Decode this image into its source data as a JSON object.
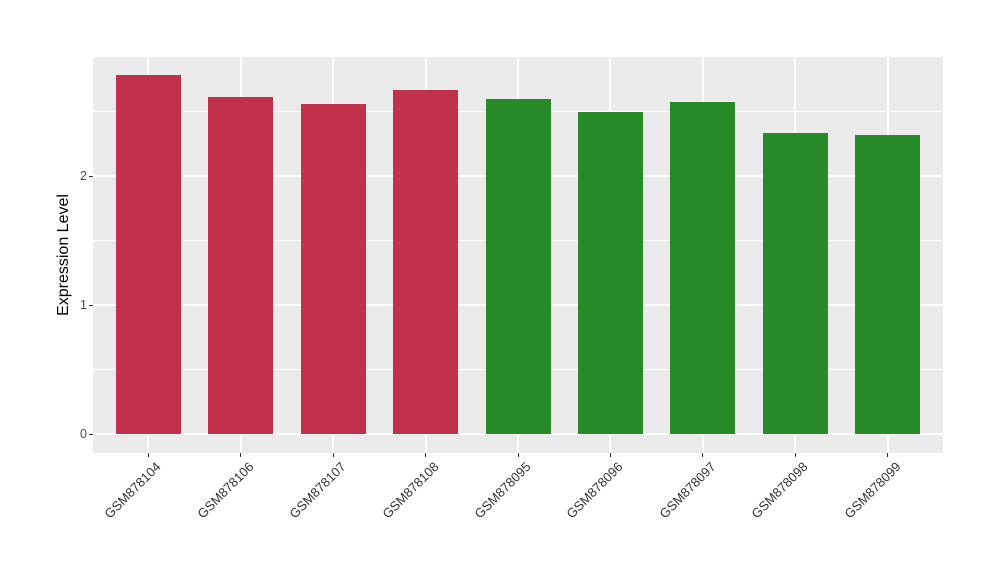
{
  "chart_data": {
    "type": "bar",
    "title": "",
    "ylabel": "Expression Level",
    "xlabel": "",
    "categories": [
      "GSM878104",
      "GSM878106",
      "GSM878107",
      "GSM878108",
      "GSM878095",
      "GSM878096",
      "GSM878097",
      "GSM878098",
      "GSM878099"
    ],
    "values": [
      2.78,
      2.61,
      2.56,
      2.67,
      2.6,
      2.5,
      2.57,
      2.33,
      2.32
    ],
    "bar_colors": [
      "#C2314B",
      "#C2314B",
      "#C2314B",
      "#C2314B",
      "#278C27",
      "#278C27",
      "#278C27",
      "#278C27",
      "#278C27"
    ],
    "group_colors": {
      "first_group": "#C2314B",
      "second_group": "#278C27"
    },
    "y_ticks": [
      0,
      1,
      2
    ],
    "y_tick_labels": [
      "0",
      "1",
      "2"
    ],
    "y_minor_ticks": [
      0.5,
      1.5,
      2.5
    ],
    "ylim": [
      -0.15,
      2.92
    ],
    "x_label_rotation_deg": 45,
    "legend_position": "none",
    "grid": "major and minor horizontal, major vertical at category centers",
    "panel_background": "#EBEBEB",
    "grid_color": "#FFFFFF",
    "axis_text_color": "#4D4D4D",
    "axis_title_color": "#000000"
  }
}
